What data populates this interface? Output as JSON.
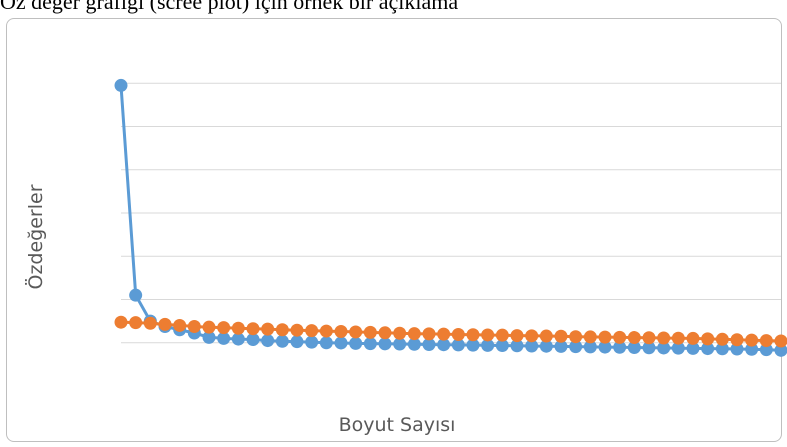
{
  "header_text": "Öz değer grafiği (scree plot) için örnek bir açıklama",
  "chart_data": {
    "type": "line",
    "title": "",
    "xlabel": "Boyut Sayısı",
    "ylabel": "Özdeğerler",
    "ylim": [
      0,
      16
    ],
    "y_gridlines": [
      2,
      4,
      6,
      8,
      10,
      12,
      14
    ],
    "grid": true,
    "legend": "none",
    "x": [
      1,
      2,
      3,
      4,
      5,
      6,
      7,
      8,
      9,
      10,
      11,
      12,
      13,
      14,
      15,
      16,
      17,
      18,
      19,
      20,
      21,
      22,
      23,
      24,
      25,
      26,
      27,
      28,
      29,
      30,
      31,
      32,
      33,
      34,
      35,
      36,
      37,
      38,
      39,
      40,
      41,
      42,
      43,
      44,
      45,
      46
    ],
    "series": [
      {
        "color": "#5b9bd5",
        "values": [
          13.9,
          4.2,
          3.0,
          2.75,
          2.6,
          2.45,
          2.25,
          2.2,
          2.17,
          2.15,
          2.1,
          2.07,
          2.05,
          2.03,
          2.0,
          1.99,
          1.97,
          1.96,
          1.95,
          1.94,
          1.93,
          1.92,
          1.91,
          1.9,
          1.89,
          1.88,
          1.87,
          1.86,
          1.85,
          1.84,
          1.83,
          1.82,
          1.81,
          1.8,
          1.79,
          1.78,
          1.77,
          1.76,
          1.75,
          1.74,
          1.73,
          1.72,
          1.71,
          1.7,
          1.68,
          1.65
        ]
      },
      {
        "color": "#ed7d31",
        "values": [
          2.95,
          2.93,
          2.9,
          2.85,
          2.8,
          2.75,
          2.72,
          2.7,
          2.67,
          2.65,
          2.63,
          2.6,
          2.58,
          2.56,
          2.54,
          2.52,
          2.5,
          2.48,
          2.46,
          2.44,
          2.42,
          2.41,
          2.4,
          2.38,
          2.37,
          2.36,
          2.35,
          2.33,
          2.32,
          2.31,
          2.3,
          2.28,
          2.27,
          2.26,
          2.25,
          2.24,
          2.23,
          2.22,
          2.21,
          2.2,
          2.18,
          2.16,
          2.14,
          2.12,
          2.1,
          2.08
        ]
      }
    ]
  }
}
